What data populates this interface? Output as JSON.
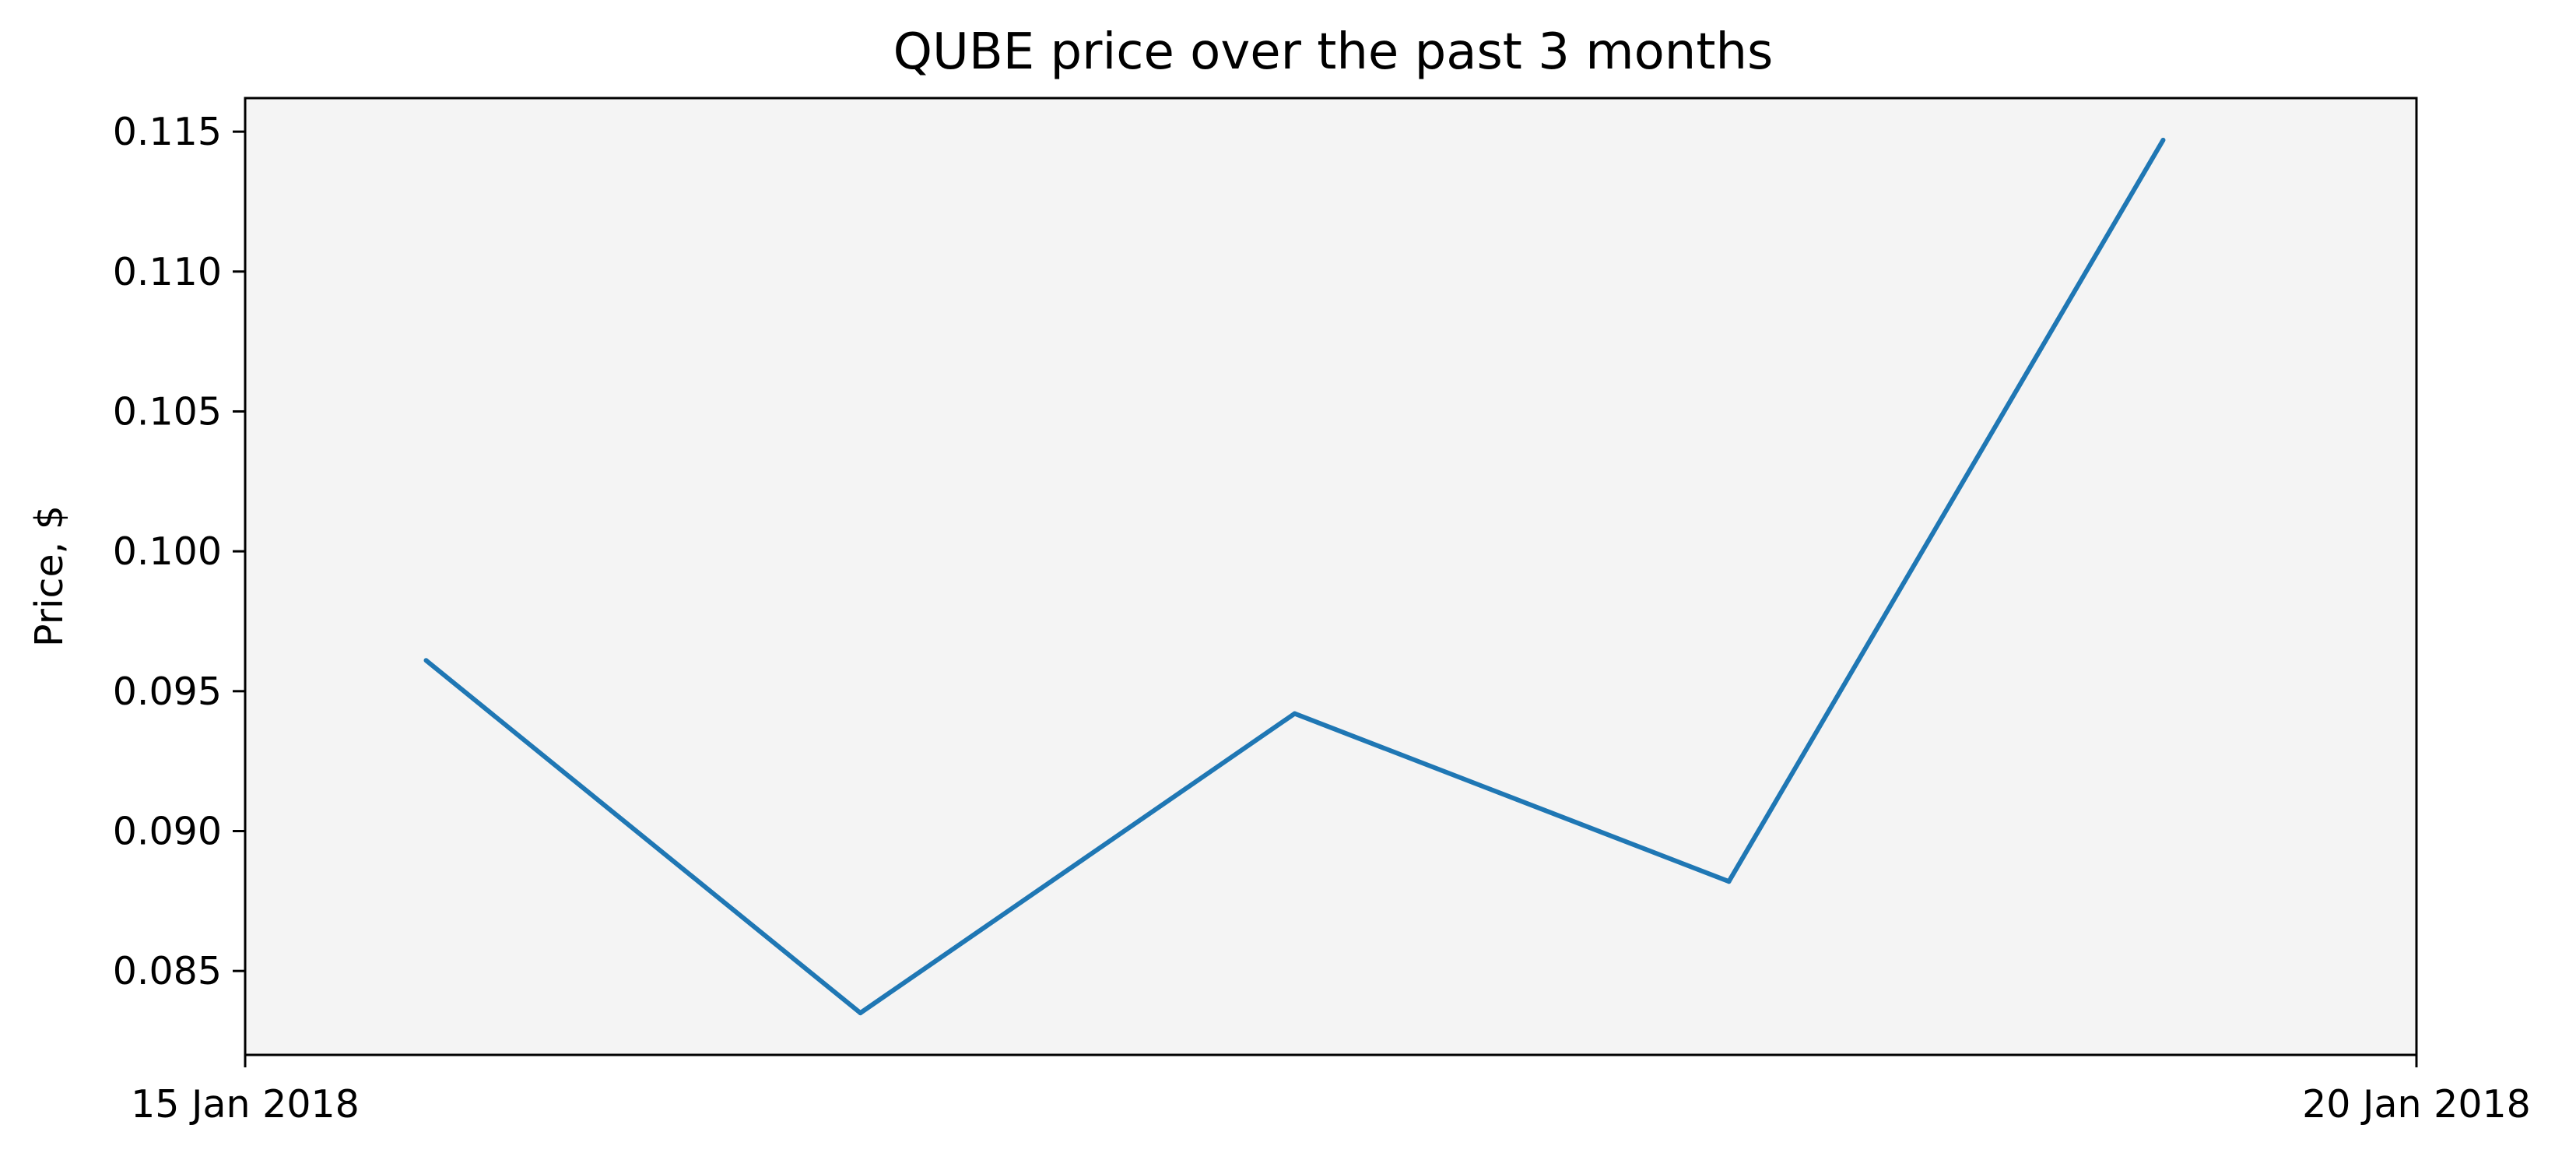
{
  "chart_data": {
    "type": "line",
    "title": "QUBE price over the past 3 months",
    "xlabel": "",
    "ylabel": "Price, $",
    "x": [
      "2018-01-15T10:00",
      "2018-01-16T10:00",
      "2018-01-17T10:00",
      "2018-01-18T10:00",
      "2018-01-19T10:00"
    ],
    "series": [
      {
        "values": [
          0.0961,
          0.0835,
          0.0942,
          0.0882,
          0.1147
        ]
      }
    ],
    "xlim": [
      "2018-01-15",
      "2018-01-20"
    ],
    "ylim": [
      0.082,
      0.1162
    ],
    "x_ticks": [
      {
        "value": "2018-01-15",
        "label": "15 Jan 2018"
      },
      {
        "value": "2018-01-20",
        "label": "20 Jan 2018"
      }
    ],
    "y_ticks": [
      {
        "value": 0.085,
        "label": "0.085"
      },
      {
        "value": 0.09,
        "label": "0.090"
      },
      {
        "value": 0.095,
        "label": "0.095"
      },
      {
        "value": 0.1,
        "label": "0.100"
      },
      {
        "value": 0.105,
        "label": "0.105"
      },
      {
        "value": 0.11,
        "label": "0.110"
      },
      {
        "value": 0.115,
        "label": "0.115"
      }
    ],
    "grid": false,
    "legend": "none",
    "colors": {
      "line": "#1f77b4",
      "plot_background": "#f4f4f4",
      "axes": "#000000"
    }
  }
}
